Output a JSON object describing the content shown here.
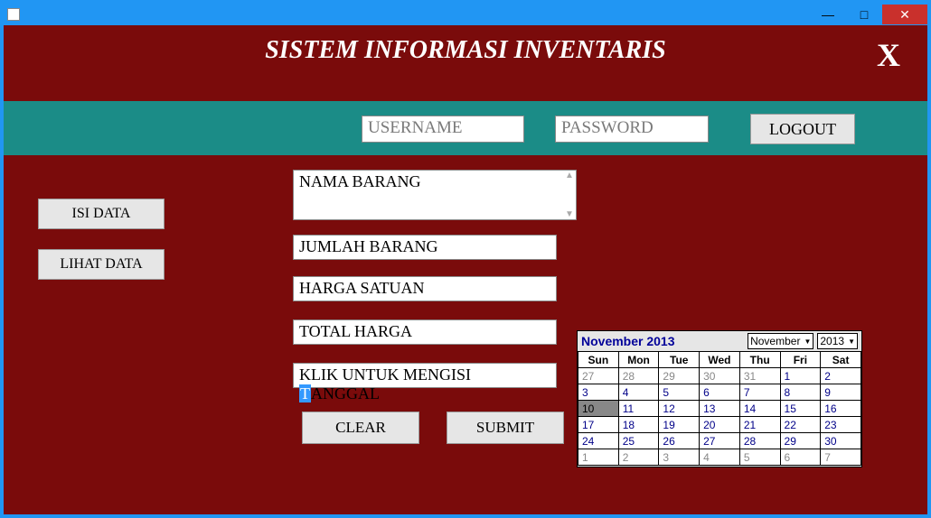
{
  "window": {
    "minimize": "—",
    "maximize": "□",
    "close": "✕"
  },
  "header": {
    "title": "SISTEM INFORMASI INVENTARIS",
    "close_label": "X"
  },
  "login": {
    "username_placeholder": "USERNAME",
    "password_placeholder": "PASSWORD",
    "logout_label": "LOGOUT"
  },
  "sidebar": {
    "isi_data": "ISI DATA",
    "lihat_data": "LIHAT DATA"
  },
  "form": {
    "nama_barang": "NAMA BARANG",
    "jumlah_barang": "JUMLAH BARANG",
    "harga_satuan": "HARGA SATUAN",
    "total_harga": "TOTAL HARGA",
    "tanggal_prefix": "KLIK UNTUK MENGISI ",
    "tanggal_hl": "T",
    "tanggal_suffix": "ANGGAL",
    "clear": "CLEAR",
    "submit": "SUBMIT"
  },
  "calendar": {
    "title": "November 2013",
    "month_select": "November",
    "year_select": "2013",
    "day_headers": [
      "Sun",
      "Mon",
      "Tue",
      "Wed",
      "Thu",
      "Fri",
      "Sat"
    ],
    "rows": [
      [
        {
          "d": "27",
          "t": "other"
        },
        {
          "d": "28",
          "t": "other"
        },
        {
          "d": "29",
          "t": "other"
        },
        {
          "d": "30",
          "t": "other"
        },
        {
          "d": "31",
          "t": "other"
        },
        {
          "d": "1",
          "t": "cur"
        },
        {
          "d": "2",
          "t": "cur"
        }
      ],
      [
        {
          "d": "3",
          "t": "cur"
        },
        {
          "d": "4",
          "t": "cur"
        },
        {
          "d": "5",
          "t": "cur"
        },
        {
          "d": "6",
          "t": "cur"
        },
        {
          "d": "7",
          "t": "cur"
        },
        {
          "d": "8",
          "t": "cur"
        },
        {
          "d": "9",
          "t": "cur"
        }
      ],
      [
        {
          "d": "10",
          "t": "today"
        },
        {
          "d": "11",
          "t": "cur"
        },
        {
          "d": "12",
          "t": "cur"
        },
        {
          "d": "13",
          "t": "cur"
        },
        {
          "d": "14",
          "t": "cur"
        },
        {
          "d": "15",
          "t": "cur"
        },
        {
          "d": "16",
          "t": "cur"
        }
      ],
      [
        {
          "d": "17",
          "t": "cur"
        },
        {
          "d": "18",
          "t": "cur"
        },
        {
          "d": "19",
          "t": "cur"
        },
        {
          "d": "20",
          "t": "cur"
        },
        {
          "d": "21",
          "t": "cur"
        },
        {
          "d": "22",
          "t": "cur"
        },
        {
          "d": "23",
          "t": "cur"
        }
      ],
      [
        {
          "d": "24",
          "t": "cur"
        },
        {
          "d": "25",
          "t": "cur"
        },
        {
          "d": "26",
          "t": "cur"
        },
        {
          "d": "27",
          "t": "cur"
        },
        {
          "d": "28",
          "t": "cur"
        },
        {
          "d": "29",
          "t": "cur"
        },
        {
          "d": "30",
          "t": "cur"
        }
      ],
      [
        {
          "d": "1",
          "t": "other"
        },
        {
          "d": "2",
          "t": "other"
        },
        {
          "d": "3",
          "t": "other"
        },
        {
          "d": "4",
          "t": "other"
        },
        {
          "d": "5",
          "t": "other"
        },
        {
          "d": "6",
          "t": "other"
        },
        {
          "d": "7",
          "t": "other"
        }
      ]
    ]
  },
  "colors": {
    "frame": "#2196f3",
    "client_bg": "#7a0b0b",
    "teal": "#1b8c87",
    "button_bg": "#e6e6e6",
    "cal_title": "#000099",
    "today_bg": "#888888"
  }
}
